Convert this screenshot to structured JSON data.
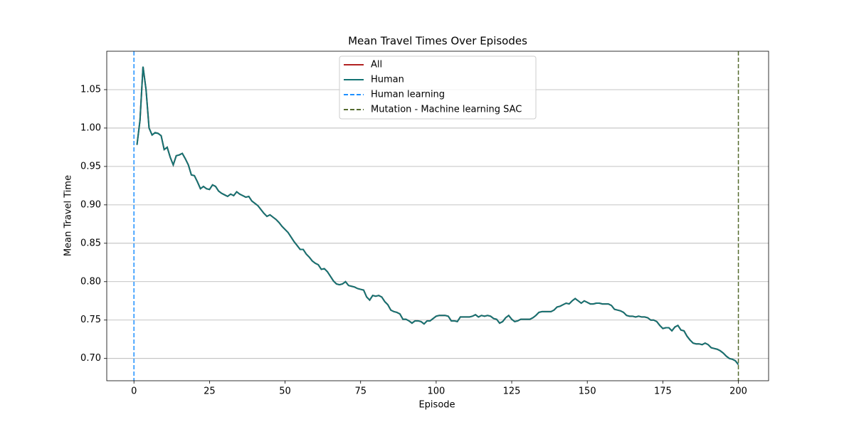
{
  "chart_data": {
    "type": "line",
    "title": "Mean Travel Times Over Episodes",
    "x_label": "Episode",
    "y_label": "Mean Travel Time",
    "x": [
      1,
      2,
      3,
      4,
      5,
      6,
      7,
      8,
      9,
      10,
      11,
      12,
      13,
      14,
      15,
      16,
      17,
      18,
      19,
      20,
      21,
      22,
      23,
      24,
      25,
      26,
      27,
      28,
      29,
      30,
      31,
      32,
      33,
      34,
      35,
      36,
      37,
      38,
      39,
      40,
      41,
      42,
      43,
      44,
      45,
      46,
      47,
      48,
      49,
      50,
      51,
      52,
      53,
      54,
      55,
      56,
      57,
      58,
      59,
      60,
      61,
      62,
      63,
      64,
      65,
      66,
      67,
      68,
      69,
      70,
      71,
      72,
      73,
      74,
      75,
      76,
      77,
      78,
      79,
      80,
      81,
      82,
      83,
      84,
      85,
      86,
      87,
      88,
      89,
      90,
      91,
      92,
      93,
      94,
      95,
      96,
      97,
      98,
      99,
      100,
      101,
      102,
      103,
      104,
      105,
      106,
      107,
      108,
      109,
      110,
      111,
      112,
      113,
      114,
      115,
      116,
      117,
      118,
      119,
      120,
      121,
      122,
      123,
      124,
      125,
      126,
      127,
      128,
      129,
      130,
      131,
      132,
      133,
      134,
      135,
      136,
      137,
      138,
      139,
      140,
      141,
      142,
      143,
      144,
      145,
      146,
      147,
      148,
      149,
      150,
      151,
      152,
      153,
      154,
      155,
      156,
      157,
      158,
      159,
      160,
      161,
      162,
      163,
      164,
      165,
      166,
      167,
      168,
      169,
      170,
      171,
      172,
      173,
      174,
      175,
      176,
      177,
      178,
      179,
      180,
      181,
      182,
      183,
      184,
      185,
      186,
      187,
      188,
      189,
      190,
      191,
      192,
      193,
      194,
      195,
      196,
      197,
      198,
      199,
      200
    ],
    "series": [
      {
        "name": "All",
        "color": "#b22222",
        "values": [
          0.978,
          1.01,
          1.08,
          1.05,
          1.0,
          0.991,
          0.994,
          0.993,
          0.99,
          0.972,
          0.975,
          0.962,
          0.952,
          0.964,
          0.965,
          0.967,
          0.96,
          0.952,
          0.939,
          0.938,
          0.93,
          0.921,
          0.924,
          0.921,
          0.92,
          0.926,
          0.924,
          0.918,
          0.915,
          0.913,
          0.911,
          0.914,
          0.912,
          0.917,
          0.914,
          0.912,
          0.91,
          0.911,
          0.905,
          0.902,
          0.899,
          0.894,
          0.889,
          0.885,
          0.887,
          0.884,
          0.881,
          0.877,
          0.872,
          0.868,
          0.864,
          0.858,
          0.852,
          0.847,
          0.842,
          0.842,
          0.836,
          0.832,
          0.827,
          0.824,
          0.822,
          0.816,
          0.817,
          0.813,
          0.807,
          0.801,
          0.797,
          0.796,
          0.797,
          0.8,
          0.795,
          0.794,
          0.793,
          0.791,
          0.79,
          0.789,
          0.78,
          0.776,
          0.782,
          0.781,
          0.782,
          0.78,
          0.774,
          0.77,
          0.763,
          0.761,
          0.76,
          0.758,
          0.751,
          0.751,
          0.749,
          0.746,
          0.749,
          0.749,
          0.748,
          0.745,
          0.749,
          0.749,
          0.752,
          0.755,
          0.756,
          0.756,
          0.756,
          0.755,
          0.749,
          0.749,
          0.748,
          0.754,
          0.754,
          0.754,
          0.754,
          0.755,
          0.757,
          0.754,
          0.756,
          0.755,
          0.756,
          0.755,
          0.752,
          0.751,
          0.746,
          0.748,
          0.753,
          0.756,
          0.751,
          0.748,
          0.749,
          0.751,
          0.751,
          0.751,
          0.751,
          0.753,
          0.756,
          0.76,
          0.761,
          0.761,
          0.761,
          0.761,
          0.763,
          0.767,
          0.768,
          0.77,
          0.772,
          0.771,
          0.775,
          0.778,
          0.775,
          0.772,
          0.775,
          0.773,
          0.771,
          0.771,
          0.772,
          0.772,
          0.771,
          0.771,
          0.771,
          0.769,
          0.764,
          0.763,
          0.762,
          0.76,
          0.756,
          0.755,
          0.755,
          0.754,
          0.755,
          0.754,
          0.754,
          0.753,
          0.75,
          0.75,
          0.748,
          0.743,
          0.739,
          0.74,
          0.74,
          0.736,
          0.741,
          0.743,
          0.737,
          0.736,
          0.729,
          0.724,
          0.72,
          0.719,
          0.719,
          0.718,
          0.72,
          0.718,
          0.714,
          0.713,
          0.712,
          0.71,
          0.707,
          0.703,
          0.7,
          0.699,
          0.697,
          0.692
        ]
      },
      {
        "name": "Human",
        "color": "#137373",
        "values": [
          0.978,
          1.01,
          1.08,
          1.05,
          1.0,
          0.991,
          0.994,
          0.993,
          0.99,
          0.972,
          0.975,
          0.962,
          0.952,
          0.964,
          0.965,
          0.967,
          0.96,
          0.952,
          0.939,
          0.938,
          0.93,
          0.921,
          0.924,
          0.921,
          0.92,
          0.926,
          0.924,
          0.918,
          0.915,
          0.913,
          0.911,
          0.914,
          0.912,
          0.917,
          0.914,
          0.912,
          0.91,
          0.911,
          0.905,
          0.902,
          0.899,
          0.894,
          0.889,
          0.885,
          0.887,
          0.884,
          0.881,
          0.877,
          0.872,
          0.868,
          0.864,
          0.858,
          0.852,
          0.847,
          0.842,
          0.842,
          0.836,
          0.832,
          0.827,
          0.824,
          0.822,
          0.816,
          0.817,
          0.813,
          0.807,
          0.801,
          0.797,
          0.796,
          0.797,
          0.8,
          0.795,
          0.794,
          0.793,
          0.791,
          0.79,
          0.789,
          0.78,
          0.776,
          0.782,
          0.781,
          0.782,
          0.78,
          0.774,
          0.77,
          0.763,
          0.761,
          0.76,
          0.758,
          0.751,
          0.751,
          0.749,
          0.746,
          0.749,
          0.749,
          0.748,
          0.745,
          0.749,
          0.749,
          0.752,
          0.755,
          0.756,
          0.756,
          0.756,
          0.755,
          0.749,
          0.749,
          0.748,
          0.754,
          0.754,
          0.754,
          0.754,
          0.755,
          0.757,
          0.754,
          0.756,
          0.755,
          0.756,
          0.755,
          0.752,
          0.751,
          0.746,
          0.748,
          0.753,
          0.756,
          0.751,
          0.748,
          0.749,
          0.751,
          0.751,
          0.751,
          0.751,
          0.753,
          0.756,
          0.76,
          0.761,
          0.761,
          0.761,
          0.761,
          0.763,
          0.767,
          0.768,
          0.77,
          0.772,
          0.771,
          0.775,
          0.778,
          0.775,
          0.772,
          0.775,
          0.773,
          0.771,
          0.771,
          0.772,
          0.772,
          0.771,
          0.771,
          0.771,
          0.769,
          0.764,
          0.763,
          0.762,
          0.76,
          0.756,
          0.755,
          0.755,
          0.754,
          0.755,
          0.754,
          0.754,
          0.753,
          0.75,
          0.75,
          0.748,
          0.743,
          0.739,
          0.74,
          0.74,
          0.736,
          0.741,
          0.743,
          0.737,
          0.736,
          0.729,
          0.724,
          0.72,
          0.719,
          0.719,
          0.718,
          0.72,
          0.718,
          0.714,
          0.713,
          0.712,
          0.71,
          0.707,
          0.703,
          0.7,
          0.699,
          0.697,
          0.692
        ]
      }
    ],
    "vlines": [
      {
        "name": "Human learning",
        "color": "#1e90ff",
        "x": 0
      },
      {
        "name": "Mutation - Machine learning SAC",
        "color": "#556b2f",
        "x": 200
      }
    ],
    "xlim": [
      -9,
      210
    ],
    "ylim": [
      0.671,
      1.1
    ],
    "xticks": [
      0,
      25,
      50,
      75,
      100,
      125,
      150,
      175,
      200
    ],
    "yticks": [
      {
        "value": 0.7,
        "label": "0.70"
      },
      {
        "value": 0.75,
        "label": "0.75"
      },
      {
        "value": 0.8,
        "label": "0.80"
      },
      {
        "value": 0.85,
        "label": "0.85"
      },
      {
        "value": 0.9,
        "label": "0.90"
      },
      {
        "value": 0.95,
        "label": "0.95"
      },
      {
        "value": 1.0,
        "label": "1.00"
      },
      {
        "value": 1.05,
        "label": "1.05"
      }
    ],
    "grid": "y",
    "legend": "upper center"
  }
}
